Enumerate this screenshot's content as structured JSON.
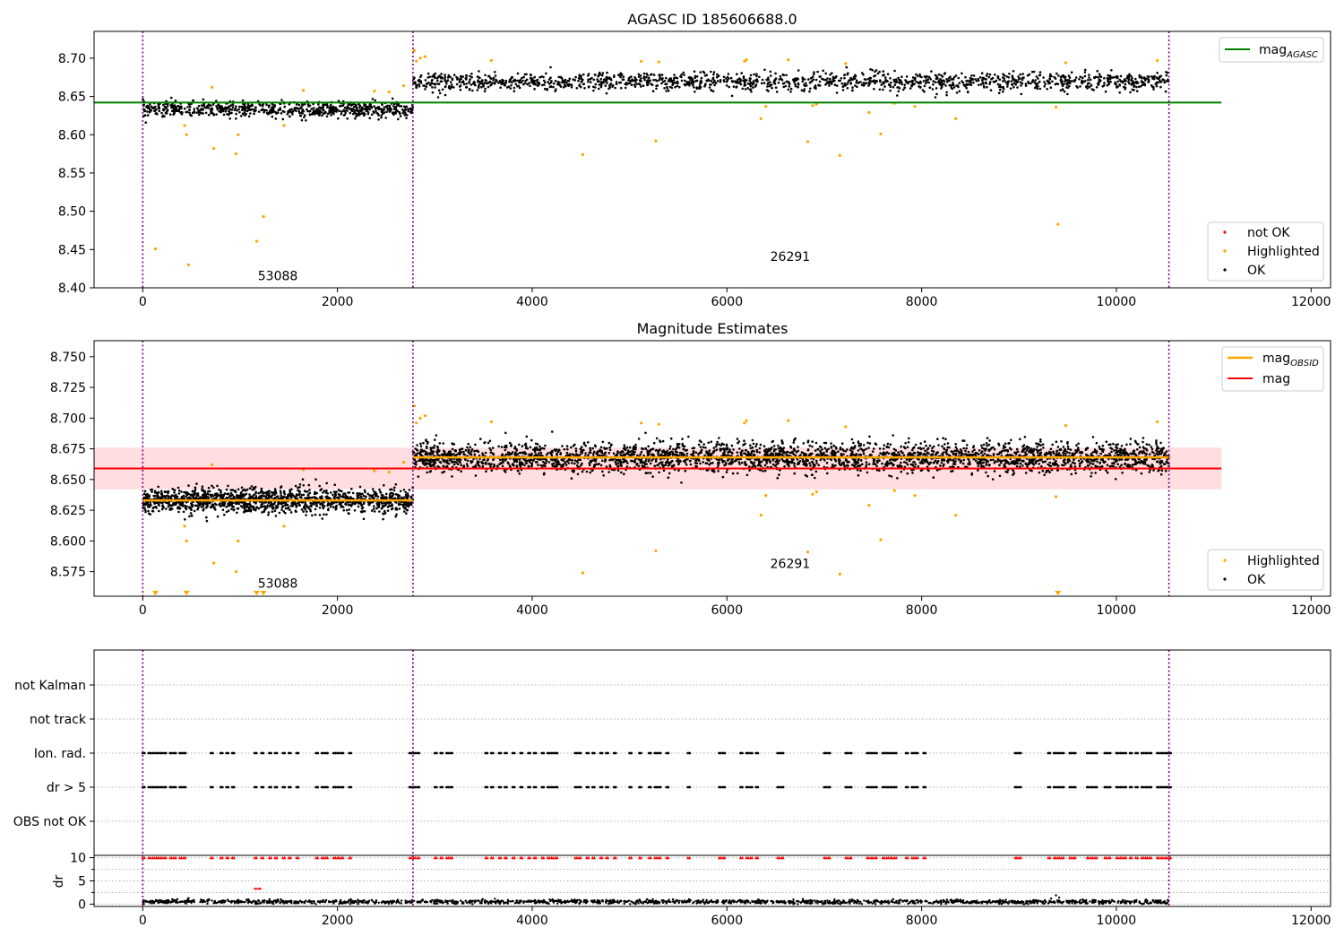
{
  "chart_data": [
    {
      "type": "scatter",
      "title": "AGASC ID 185606688.0",
      "xlim": [
        -500,
        12200
      ],
      "ylim": [
        8.4,
        8.735
      ],
      "x_ticks": [
        0,
        2000,
        4000,
        6000,
        8000,
        10000,
        12000
      ],
      "y_ticks": [
        "8.40",
        "8.45",
        "8.50",
        "8.55",
        "8.60",
        "8.65",
        "8.70"
      ],
      "obs_boundaries": [
        0,
        2775,
        10540
      ],
      "obs_labels": [
        {
          "text": "53088",
          "x": 1387,
          "y": 8.41
        },
        {
          "text": "26291",
          "x": 6650,
          "y": 8.435
        }
      ],
      "series": [
        {
          "name": "OK",
          "color": "#000000",
          "segments": [
            {
              "x": [
                0,
                2775
              ],
              "center": 8.633,
              "spread": 0.009,
              "count": 700
            },
            {
              "x": [
                2775,
                10540
              ],
              "center": 8.669,
              "spread": 0.011,
              "count": 1500
            }
          ]
        },
        {
          "name": "Highlighted",
          "color": "#ffa500",
          "points": [
            [
              130,
              8.451
            ],
            [
              430,
              8.612
            ],
            [
              450,
              8.6
            ],
            [
              470,
              8.43
            ],
            [
              710,
              8.662
            ],
            [
              730,
              8.582
            ],
            [
              960,
              8.575
            ],
            [
              980,
              8.6
            ],
            [
              1170,
              8.461
            ],
            [
              1240,
              8.493
            ],
            [
              1450,
              8.612
            ],
            [
              1650,
              8.658
            ],
            [
              2380,
              8.657
            ],
            [
              2530,
              8.656
            ],
            [
              2680,
              8.664
            ],
            [
              2790,
              8.71
            ],
            [
              2810,
              8.696
            ],
            [
              2850,
              8.7
            ],
            [
              2900,
              8.702
            ],
            [
              3580,
              8.697
            ],
            [
              4520,
              8.574
            ],
            [
              5120,
              8.696
            ],
            [
              5270,
              8.592
            ],
            [
              5300,
              8.695
            ],
            [
              6180,
              8.696
            ],
            [
              6200,
              8.698
            ],
            [
              6350,
              8.621
            ],
            [
              6400,
              8.637
            ],
            [
              6630,
              8.698
            ],
            [
              6830,
              8.591
            ],
            [
              6880,
              8.638
            ],
            [
              6920,
              8.64
            ],
            [
              7160,
              8.573
            ],
            [
              7220,
              8.693
            ],
            [
              7460,
              8.629
            ],
            [
              7580,
              8.601
            ],
            [
              7720,
              8.641
            ],
            [
              7930,
              8.637
            ],
            [
              8350,
              8.621
            ],
            [
              9380,
              8.636
            ],
            [
              9400,
              8.483
            ],
            [
              9480,
              8.694
            ],
            [
              10420,
              8.697
            ]
          ]
        },
        {
          "name": "not OK",
          "color": "#ff0000",
          "points": []
        },
        {
          "name": "mag_AGASC",
          "color": "#008000",
          "line_y": 8.642,
          "line_x": [
            -500,
            11080
          ]
        }
      ],
      "legend": {
        "upper": [
          "mag_AGASC"
        ],
        "lower": [
          "not OK",
          "Highlighted",
          "OK"
        ]
      }
    },
    {
      "type": "scatter",
      "title": "Magnitude Estimates",
      "xlim": [
        -500,
        12200
      ],
      "ylim": [
        8.555,
        8.763
      ],
      "x_ticks": [
        0,
        2000,
        4000,
        6000,
        8000,
        10000,
        12000
      ],
      "y_ticks": [
        "8.575",
        "8.600",
        "8.625",
        "8.650",
        "8.675",
        "8.700",
        "8.725",
        "8.750"
      ],
      "obs_boundaries": [
        0,
        2775,
        10540
      ],
      "obs_labels": [
        {
          "text": "53088",
          "x": 1387,
          "y": 8.562
        },
        {
          "text": "26291",
          "x": 6650,
          "y": 8.578
        }
      ],
      "series": [
        {
          "name": "OK",
          "color": "#000000",
          "segments": [
            {
              "x": [
                0,
                2775
              ],
              "center": 8.633,
              "spread": 0.009,
              "count": 1400
            },
            {
              "x": [
                2775,
                10540
              ],
              "center": 8.668,
              "spread": 0.011,
              "count": 3000
            }
          ]
        },
        {
          "name": "Highlighted",
          "color": "#ffa500",
          "below_range_x": [
            130,
            450,
            1170,
            1240,
            9400
          ]
        },
        {
          "name": "mag_OBSID",
          "color": "#ffa500",
          "lines": [
            {
              "x": [
                0,
                2775
              ],
              "y": 8.633
            },
            {
              "x": [
                2775,
                10540
              ],
              "y": 8.668
            }
          ]
        },
        {
          "name": "mag",
          "color": "#ff0000",
          "line_y": 8.659,
          "band": [
            8.642,
            8.676
          ],
          "line_x": [
            -500,
            11080
          ]
        }
      ],
      "legend": {
        "upper": [
          "mag_OBSID",
          "mag"
        ],
        "lower": [
          "Highlighted",
          "OK"
        ]
      }
    },
    {
      "type": "scatter",
      "title": "",
      "xlim": [
        -500,
        12200
      ],
      "categories": [
        "not Kalman",
        "not track",
        "Ion. rad.",
        "dr > 5",
        "OBS not OK"
      ],
      "flag_rows": [
        {
          "name": "Ion. rad.",
          "x": [
            0,
            60,
            100,
            140,
            180,
            220,
            280,
            320,
            380,
            420,
            700,
            800,
            860,
            920,
            1150,
            1220,
            1300,
            1360,
            1440,
            1500,
            1580,
            1780,
            1840,
            1880,
            1960,
            2000,
            2040,
            2120,
            2740,
            2780,
            2820,
            3000,
            3060,
            3120,
            3160,
            3520,
            3580,
            3660,
            3720,
            3800,
            3880,
            3960,
            4020,
            4100,
            4160,
            4200,
            4240,
            4440,
            4480,
            4560,
            4620,
            4700,
            4760,
            4840,
            5000,
            5100,
            5200,
            5260,
            5300,
            5380,
            5600,
            5920,
            5960,
            6140,
            6200,
            6240,
            6300,
            6520,
            6560,
            7000,
            7040,
            7220,
            7260,
            7440,
            7480,
            7520,
            7600,
            7640,
            7680,
            7720,
            7840,
            7900,
            7940,
            8020,
            8960,
            9000,
            9300,
            9360,
            9400,
            9440,
            9520,
            9560,
            9700,
            9740,
            9780,
            9880,
            9920,
            10000,
            10040,
            10080,
            10140,
            10200,
            10260,
            10300,
            10340,
            10420,
            10460,
            10500,
            10540
          ]
        },
        {
          "name": "dr > 5",
          "x": [
            0,
            60,
            100,
            140,
            180,
            220,
            280,
            320,
            380,
            420,
            700,
            800,
            860,
            920,
            1150,
            1220,
            1300,
            1360,
            1440,
            1500,
            1580,
            1780,
            1840,
            1880,
            1960,
            2000,
            2040,
            2120,
            2740,
            2780,
            2820,
            3000,
            3060,
            3120,
            3160,
            3520,
            3580,
            3660,
            3720,
            3800,
            3880,
            3960,
            4020,
            4100,
            4160,
            4200,
            4240,
            4440,
            4480,
            4560,
            4620,
            4700,
            4760,
            4840,
            5000,
            5100,
            5200,
            5260,
            5300,
            5380,
            5600,
            5920,
            5960,
            6140,
            6200,
            6240,
            6300,
            6520,
            6560,
            7000,
            7040,
            7220,
            7260,
            7440,
            7480,
            7520,
            7600,
            7640,
            7680,
            7720,
            7840,
            7900,
            7940,
            8020,
            8960,
            9000,
            9300,
            9360,
            9400,
            9440,
            9520,
            9560,
            9700,
            9740,
            9780,
            9880,
            9920,
            10000,
            10040,
            10080,
            10140,
            10200,
            10260,
            10300,
            10340,
            10420,
            10460,
            10500,
            10540
          ]
        }
      ]
    },
    {
      "type": "scatter",
      "title": "",
      "ylabel": "dr",
      "xlim": [
        -500,
        12200
      ],
      "ylim": [
        -0.5,
        10.5
      ],
      "x_ticks": [
        0,
        2000,
        4000,
        6000,
        8000,
        10000,
        12000
      ],
      "y_ticks": [
        "0",
        "5",
        "10"
      ],
      "series": [
        {
          "name": "dr",
          "color": "#000000",
          "center": 0.5,
          "spread": 0.35,
          "count": 1600,
          "x": [
            0,
            10540
          ]
        },
        {
          "name": "dr clipped",
          "color": "#ff0000",
          "y": 10,
          "same_x_as": "dr > 5"
        },
        {
          "name": "dr highlight",
          "color": "#ff0000",
          "points": [
            [
              1160,
              3.3
            ],
            [
              1200,
              3.3
            ]
          ]
        }
      ]
    }
  ],
  "legend_labels": {
    "mag_agasc": "mag",
    "mag_agasc_sub": "AGASC",
    "mag_obsid": "mag",
    "mag_obsid_sub": "OBSID",
    "mag": "mag",
    "not_ok": "not OK",
    "highlighted": "Highlighted",
    "ok": "OK"
  },
  "colors": {
    "ok": "#000000",
    "highlighted": "#ffa500",
    "not_ok": "#ff0000",
    "mag_agasc": "#008000",
    "mag": "#ff0000",
    "mag_band": "#ffdde0",
    "obs_boundary": "#800080",
    "grid": "#b0b0b0"
  }
}
